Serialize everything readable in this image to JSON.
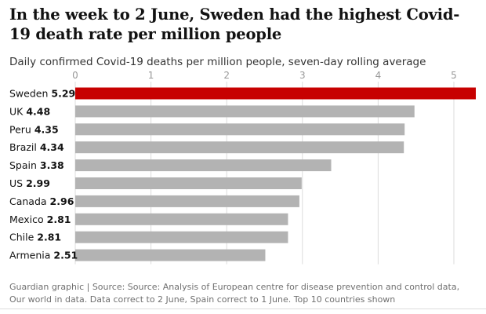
{
  "title": "In the week to 2 June, Sweden had the highest Covid-19 death rate per million people",
  "subtitle": "Daily confirmed Covid-19 deaths per million people, seven-day rolling average",
  "footer": "Guardian graphic | Source: Source: Analysis of European centre for disease prevention and control data, Our world in data. Data correct to 2 June, Spain correct to 1 June. Top 10 countries shown",
  "colors": {
    "highlight": "#c70000",
    "bar": "#b3b3b3",
    "grid": "#dcdcdc",
    "tick": "#999999"
  },
  "chart_data": {
    "type": "bar",
    "orientation": "horizontal",
    "title": "In the week to 2 June, Sweden had the highest Covid-19 death rate per million people",
    "subtitle": "Daily confirmed Covid-19 deaths per million people, seven-day rolling average",
    "xlabel": "",
    "ylabel": "",
    "xlim": [
      0,
      5.29
    ],
    "ticks": [
      0,
      1,
      2,
      3,
      4,
      5
    ],
    "grid": true,
    "categories": [
      "Sweden",
      "UK",
      "Peru",
      "Brazil",
      "Spain",
      "US",
      "Canada",
      "Mexico",
      "Chile",
      "Armenia"
    ],
    "values": [
      5.29,
      4.48,
      4.35,
      4.34,
      3.38,
      2.99,
      2.96,
      2.81,
      2.81,
      2.51
    ],
    "highlight": "Sweden"
  }
}
